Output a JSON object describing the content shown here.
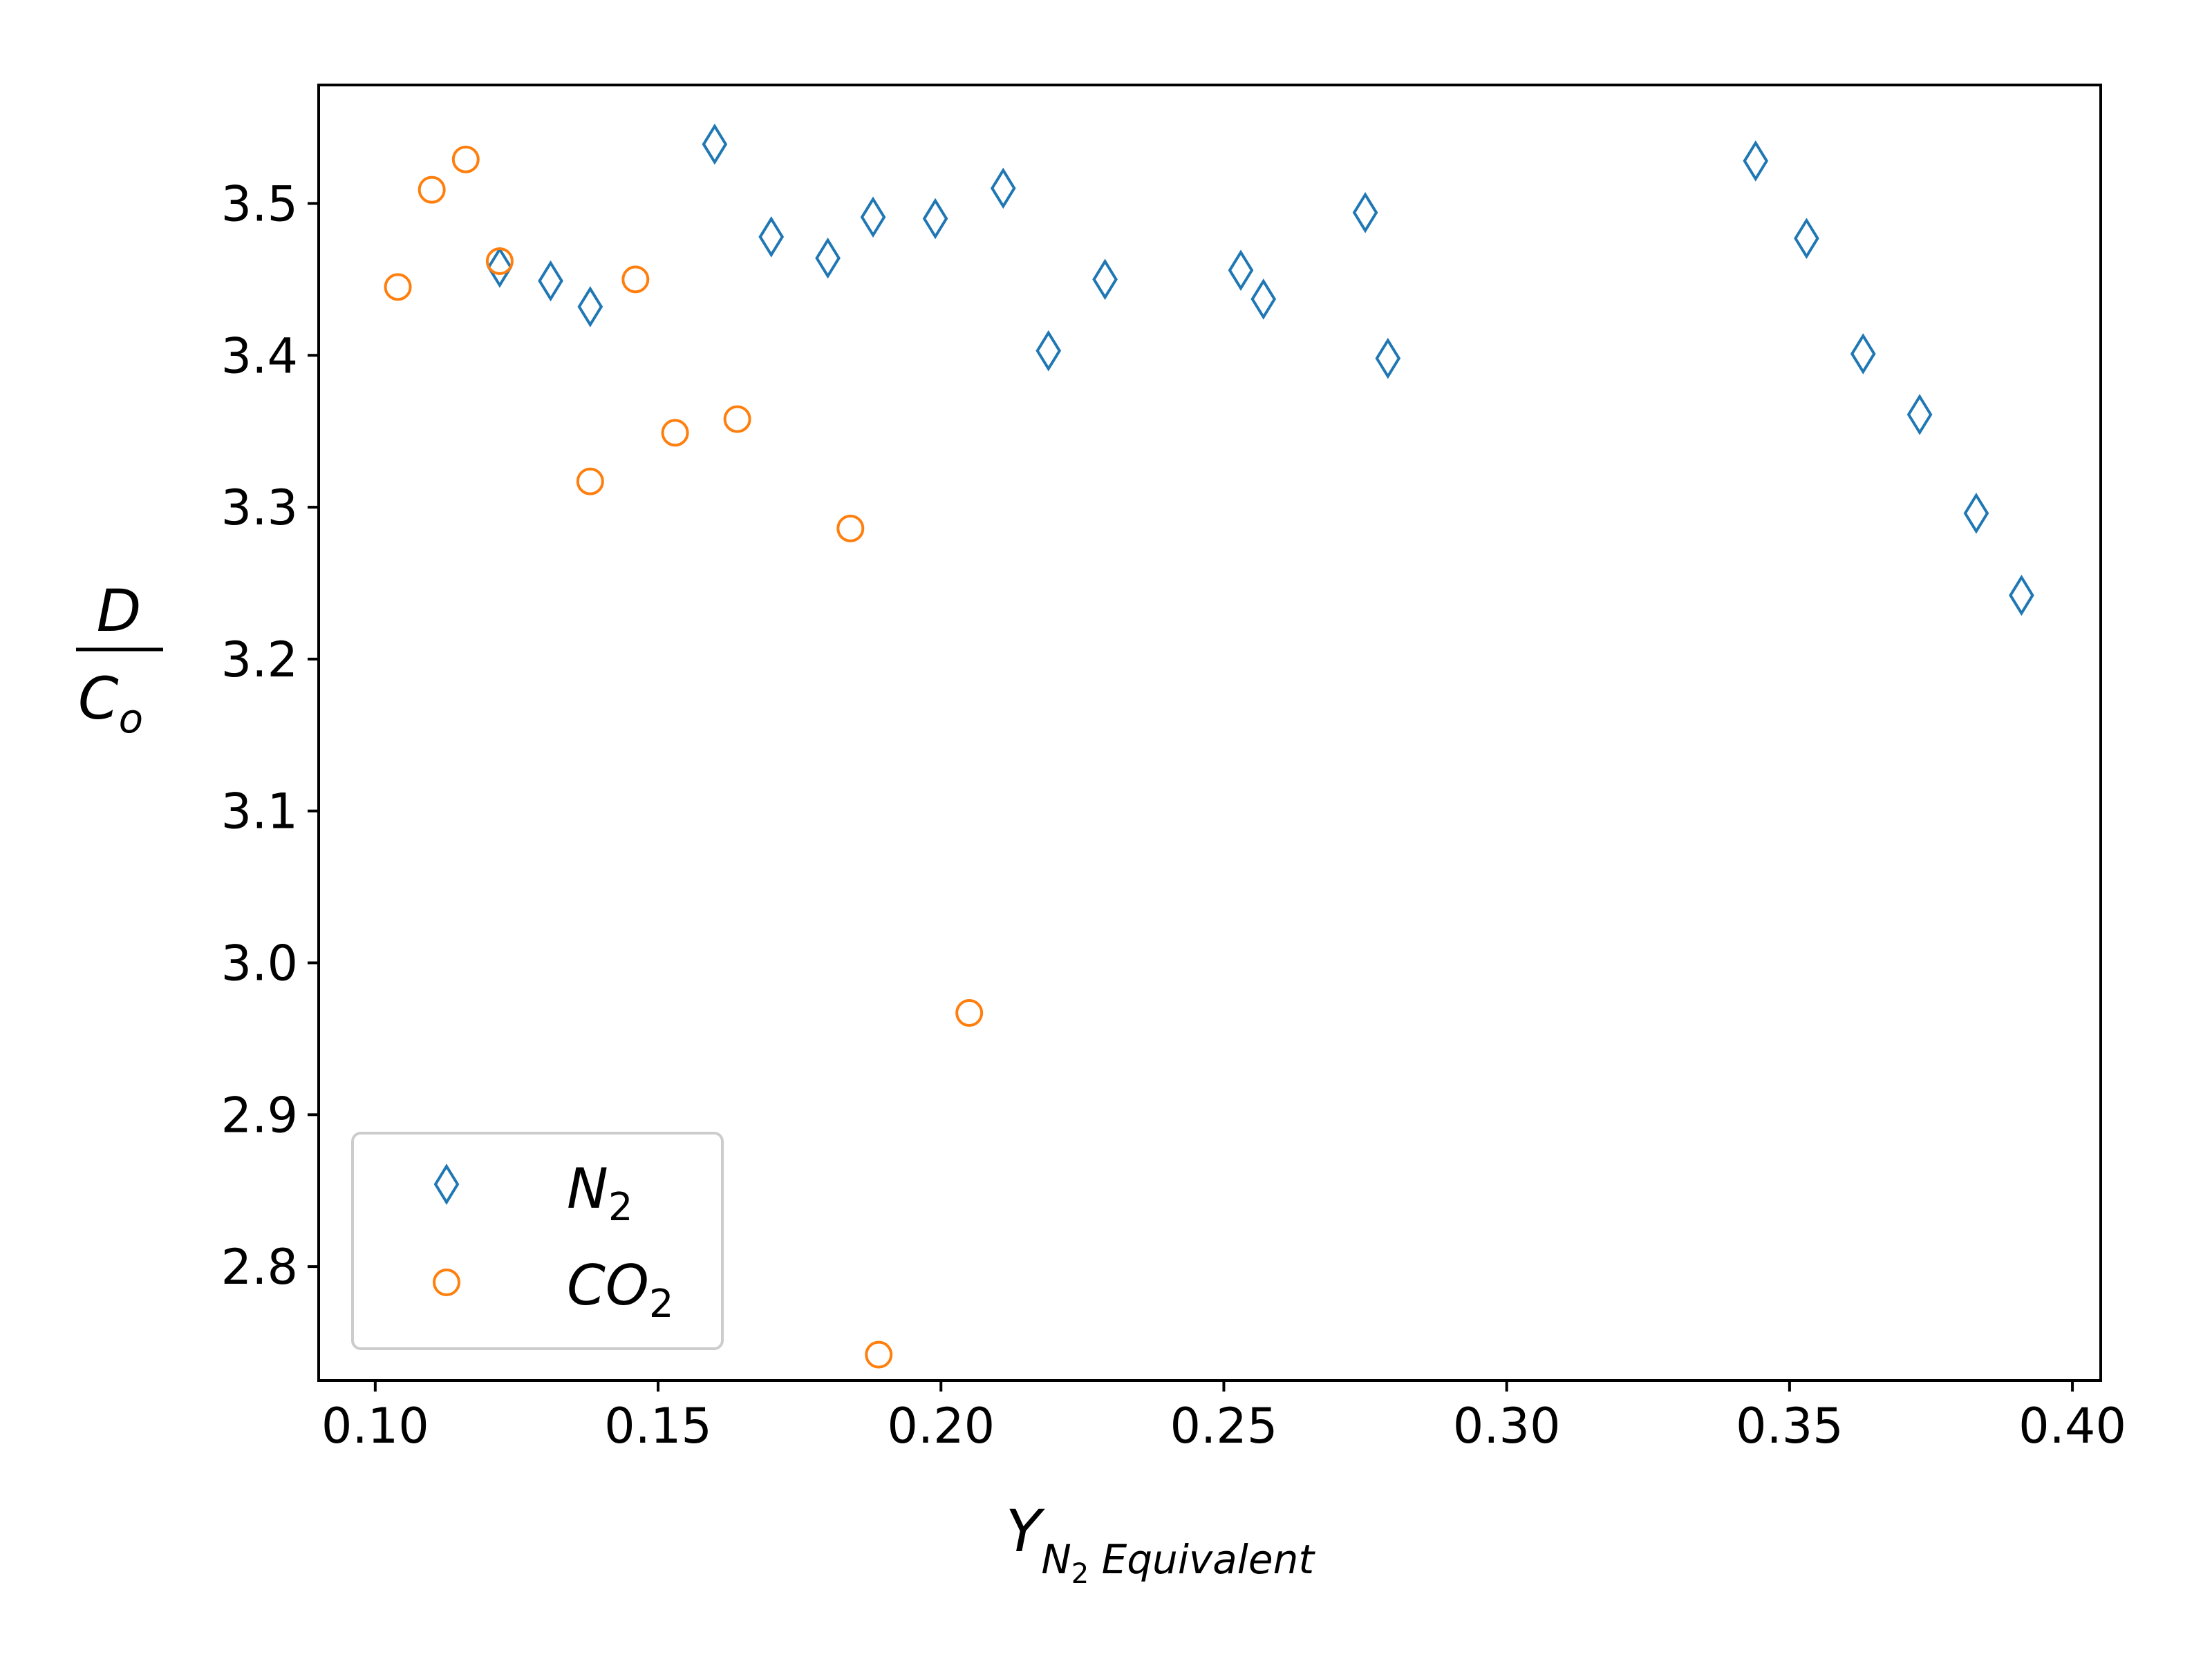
{
  "chart_data": {
    "type": "scatter",
    "title": "",
    "xlabel": {
      "main": "Y",
      "subscript_base": "N",
      "subscript_num": "2",
      "subscript_rest": " Equivalent"
    },
    "ylabel": {
      "numerator": "D",
      "denominator_main": "C",
      "denominator_sub": "o"
    },
    "xlim": [
      0.09,
      0.405
    ],
    "ylim": [
      2.725,
      3.578
    ],
    "xticks": [
      "0.10",
      "0.15",
      "0.20",
      "0.25",
      "0.30",
      "0.35",
      "0.40"
    ],
    "yticks": [
      "2.8",
      "2.9",
      "3.0",
      "3.1",
      "3.2",
      "3.3",
      "3.4",
      "3.5"
    ],
    "grid": false,
    "legend_position": "lower-left",
    "series": [
      {
        "name": "N",
        "name_sub": "2",
        "marker": "thin-diamond",
        "color": "#1f77b4",
        "points": [
          [
            0.122,
            3.458
          ],
          [
            0.131,
            3.449
          ],
          [
            0.138,
            3.432
          ],
          [
            0.16,
            3.539
          ],
          [
            0.17,
            3.478
          ],
          [
            0.18,
            3.464
          ],
          [
            0.188,
            3.491
          ],
          [
            0.199,
            3.49
          ],
          [
            0.211,
            3.51
          ],
          [
            0.219,
            3.403
          ],
          [
            0.229,
            3.45
          ],
          [
            0.253,
            3.456
          ],
          [
            0.257,
            3.437
          ],
          [
            0.275,
            3.494
          ],
          [
            0.279,
            3.398
          ],
          [
            0.344,
            3.528
          ],
          [
            0.353,
            3.477
          ],
          [
            0.363,
            3.401
          ],
          [
            0.373,
            3.361
          ],
          [
            0.383,
            3.296
          ],
          [
            0.391,
            3.242
          ]
        ]
      },
      {
        "name": "CO",
        "name_sub": "2",
        "marker": "circle",
        "color": "#ff7f0e",
        "points": [
          [
            0.104,
            3.445
          ],
          [
            0.11,
            3.509
          ],
          [
            0.116,
            3.529
          ],
          [
            0.122,
            3.462
          ],
          [
            0.138,
            3.317
          ],
          [
            0.146,
            3.45
          ],
          [
            0.153,
            3.349
          ],
          [
            0.164,
            3.358
          ],
          [
            0.184,
            3.286
          ],
          [
            0.189,
            2.742
          ],
          [
            0.205,
            2.967
          ]
        ]
      }
    ]
  }
}
